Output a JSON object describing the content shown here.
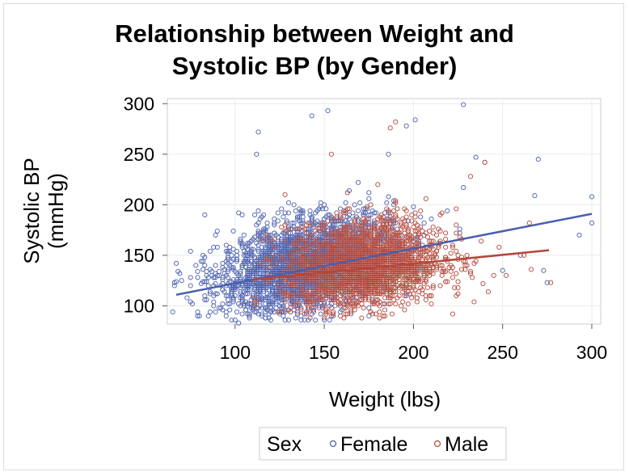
{
  "chart_data": {
    "type": "scatter",
    "title_lines": [
      "Relationship between Weight and",
      "Systolic BP (by Gender)"
    ],
    "xlabel": "Weight (lbs)",
    "ylabel_lines": [
      "Systolic BP",
      "(mmHg)"
    ],
    "xlim": [
      62,
      305
    ],
    "ylim": [
      82,
      305
    ],
    "x_ticks": [
      100,
      150,
      200,
      250,
      300
    ],
    "y_ticks": [
      100,
      150,
      200,
      250,
      300
    ],
    "grid": true,
    "legend": {
      "title": "Sex",
      "position": "bottom",
      "entries": [
        "Female",
        "Male"
      ]
    },
    "series": [
      {
        "name": "Female",
        "color": "#4a5fae",
        "marker": "circle-open",
        "cluster": {
          "x_mean": 140,
          "x_sd": 24,
          "y_mean": 140,
          "y_sd": 22,
          "x_range": [
            65,
            300
          ],
          "y_range": [
            85,
            300
          ],
          "count_approx": 2900
        },
        "notable_points": [
          {
            "x": 66,
            "y": 123
          },
          {
            "x": 70,
            "y": 125
          },
          {
            "x": 143,
            "y": 288
          },
          {
            "x": 152,
            "y": 293
          },
          {
            "x": 228,
            "y": 299
          },
          {
            "x": 113,
            "y": 272
          },
          {
            "x": 112,
            "y": 250
          },
          {
            "x": 201,
            "y": 284
          },
          {
            "x": 196,
            "y": 278
          },
          {
            "x": 270,
            "y": 245
          },
          {
            "x": 268,
            "y": 209
          },
          {
            "x": 293,
            "y": 170
          },
          {
            "x": 300,
            "y": 208
          },
          {
            "x": 300,
            "y": 182
          },
          {
            "x": 273,
            "y": 135
          },
          {
            "x": 275,
            "y": 123
          },
          {
            "x": 102,
            "y": 83
          },
          {
            "x": 95,
            "y": 90
          },
          {
            "x": 228,
            "y": 217
          },
          {
            "x": 240,
            "y": 242
          },
          {
            "x": 235,
            "y": 247
          },
          {
            "x": 260,
            "y": 150
          },
          {
            "x": 250,
            "y": 135
          }
        ],
        "regression": {
          "x": [
            67,
            300
          ],
          "y": [
            111,
            191
          ]
        }
      },
      {
        "name": "Male",
        "color": "#b3473a",
        "marker": "circle-open",
        "cluster": {
          "x_mean": 172,
          "x_sd": 22,
          "y_mean": 140,
          "y_sd": 22,
          "x_range": [
            110,
            278
          ],
          "y_range": [
            88,
            282
          ],
          "count_approx": 2300
        },
        "notable_points": [
          {
            "x": 187,
            "y": 276
          },
          {
            "x": 190,
            "y": 282
          },
          {
            "x": 154,
            "y": 250
          },
          {
            "x": 240,
            "y": 242
          },
          {
            "x": 232,
            "y": 228
          },
          {
            "x": 265,
            "y": 182
          },
          {
            "x": 277,
            "y": 123
          },
          {
            "x": 262,
            "y": 150
          },
          {
            "x": 248,
            "y": 158
          },
          {
            "x": 252,
            "y": 130
          }
        ],
        "regression": {
          "x": [
            110,
            276
          ],
          "y": [
            126,
            155
          ]
        }
      }
    ]
  }
}
